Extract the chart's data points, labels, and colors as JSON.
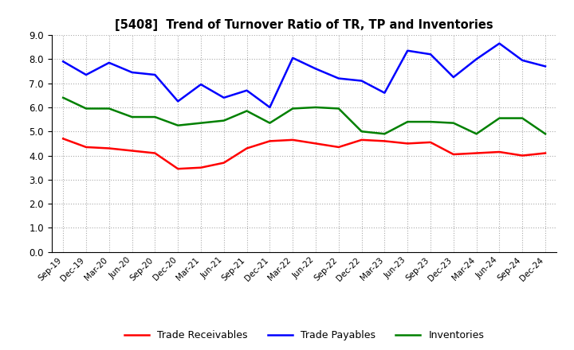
{
  "title": "[5408]  Trend of Turnover Ratio of TR, TP and Inventories",
  "x_labels": [
    "Sep-19",
    "Dec-19",
    "Mar-20",
    "Jun-20",
    "Sep-20",
    "Dec-20",
    "Mar-21",
    "Jun-21",
    "Sep-21",
    "Dec-21",
    "Mar-22",
    "Jun-22",
    "Sep-22",
    "Dec-22",
    "Mar-23",
    "Jun-23",
    "Sep-23",
    "Dec-23",
    "Mar-24",
    "Jun-24",
    "Sep-24",
    "Dec-24"
  ],
  "trade_receivables": [
    4.7,
    4.35,
    4.3,
    4.2,
    4.1,
    3.45,
    3.5,
    3.7,
    4.3,
    4.6,
    4.65,
    4.5,
    4.35,
    4.65,
    4.6,
    4.5,
    4.55,
    4.05,
    4.1,
    4.15,
    4.0,
    4.1
  ],
  "trade_payables": [
    7.9,
    7.35,
    7.85,
    7.45,
    7.35,
    6.25,
    6.95,
    6.4,
    6.7,
    6.0,
    8.05,
    7.6,
    7.2,
    7.1,
    6.6,
    8.35,
    8.2,
    7.25,
    8.0,
    8.65,
    7.95,
    7.7
  ],
  "inventories": [
    6.4,
    5.95,
    5.95,
    5.6,
    5.6,
    5.25,
    5.35,
    5.45,
    5.85,
    5.35,
    5.95,
    6.0,
    5.95,
    5.0,
    4.9,
    5.4,
    5.4,
    5.35,
    4.9,
    5.55,
    5.55,
    4.9
  ],
  "tr_color": "#ff0000",
  "tp_color": "#0000ff",
  "inv_color": "#008000",
  "ylim": [
    0.0,
    9.0
  ],
  "yticks": [
    0.0,
    1.0,
    2.0,
    3.0,
    4.0,
    5.0,
    6.0,
    7.0,
    8.0,
    9.0
  ],
  "legend_labels": [
    "Trade Receivables",
    "Trade Payables",
    "Inventories"
  ],
  "background_color": "#ffffff",
  "line_width": 1.8
}
